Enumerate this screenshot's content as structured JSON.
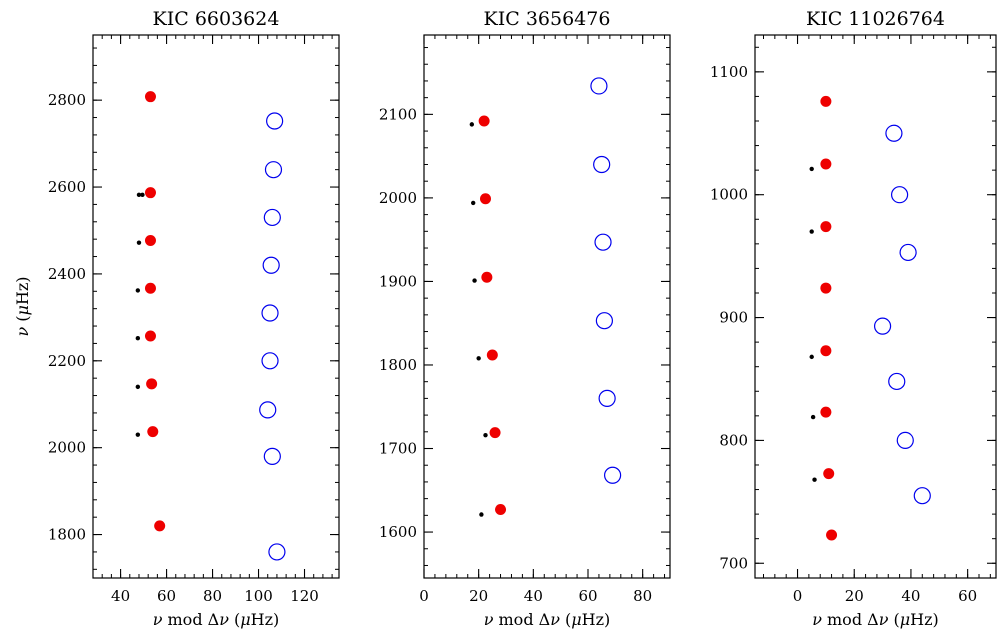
{
  "colors": {
    "l0": "#ee0000",
    "l1": "#0000ee",
    "l2": "#000000",
    "axes": "#000000"
  },
  "chart_data": [
    {
      "type": "scatter",
      "title": "KIC 6603624",
      "xlabel": "ν mod Δν (μHz)",
      "ylabel": "ν (μHz)",
      "xlim": [
        28,
        135
      ],
      "ylim": [
        1700,
        2950
      ],
      "xticks": [
        40,
        60,
        80,
        100,
        120
      ],
      "yticks": [
        1800,
        2000,
        2200,
        2400,
        2600,
        2800
      ],
      "series": [
        {
          "marker": "filled-circle",
          "color": "#ee0000",
          "x": [
            57,
            54,
            53.5,
            53,
            53,
            53,
            53,
            53
          ],
          "y": [
            1820,
            2037,
            2147,
            2257,
            2367,
            2477,
            2587,
            2808
          ]
        },
        {
          "marker": "open-circle",
          "color": "#0000ee",
          "x": [
            108,
            106,
            104,
            105,
            105,
            105.5,
            106,
            106.5,
            107
          ],
          "y": [
            1760,
            1980,
            2087,
            2200,
            2310,
            2420,
            2530,
            2640,
            2752
          ]
        },
        {
          "marker": "small-dot",
          "color": "#000000",
          "x": [
            47.5,
            47.5,
            47.5,
            47.5,
            48,
            49.5,
            48
          ],
          "y": [
            2030,
            2140,
            2252,
            2362,
            2472,
            2582,
            2582
          ]
        }
      ]
    },
    {
      "type": "scatter",
      "title": "KIC 3656476",
      "xlabel": "ν mod Δν (μHz)",
      "ylabel": "",
      "xlim": [
        0,
        90
      ],
      "ylim": [
        1545,
        2195
      ],
      "xticks": [
        0,
        20,
        40,
        60,
        80
      ],
      "yticks": [
        1600,
        1700,
        1800,
        1900,
        2000,
        2100
      ],
      "series": [
        {
          "marker": "filled-circle",
          "color": "#ee0000",
          "x": [
            28,
            26,
            25,
            23,
            22.5,
            22
          ],
          "y": [
            1627,
            1719,
            1812,
            1905,
            1999,
            2092
          ]
        },
        {
          "marker": "open-circle",
          "color": "#0000ee",
          "x": [
            69,
            67,
            66,
            65.5,
            65,
            64
          ],
          "y": [
            1668,
            1760,
            1853,
            1947,
            2040,
            2134
          ]
        },
        {
          "marker": "small-dot",
          "color": "#000000",
          "x": [
            21,
            22.5,
            20,
            18.5,
            18,
            17.5
          ],
          "y": [
            1621,
            1716,
            1808,
            1901,
            1994,
            2088
          ]
        }
      ]
    },
    {
      "type": "scatter",
      "title": "KIC 11026764",
      "xlabel": "ν mod Δν (μHz)",
      "ylabel": "",
      "xlim": [
        -15,
        70
      ],
      "ylim": [
        688,
        1130
      ],
      "xticks": [
        0,
        20,
        40,
        60
      ],
      "yticks": [
        700,
        800,
        900,
        1000,
        1100
      ],
      "series": [
        {
          "marker": "filled-circle",
          "color": "#ee0000",
          "x": [
            12,
            11,
            10,
            10,
            10,
            10,
            10,
            10
          ],
          "y": [
            723,
            773,
            823,
            873,
            924,
            974,
            1025,
            1076
          ]
        },
        {
          "marker": "open-circle",
          "color": "#0000ee",
          "x": [
            44,
            38,
            35,
            30,
            39,
            36,
            34
          ],
          "y": [
            755,
            800,
            848,
            893,
            953,
            1000,
            1050
          ]
        },
        {
          "marker": "small-dot",
          "color": "#000000",
          "x": [
            6,
            5.5,
            5,
            5,
            5
          ],
          "y": [
            768,
            819,
            868,
            970,
            1021
          ]
        }
      ]
    }
  ]
}
